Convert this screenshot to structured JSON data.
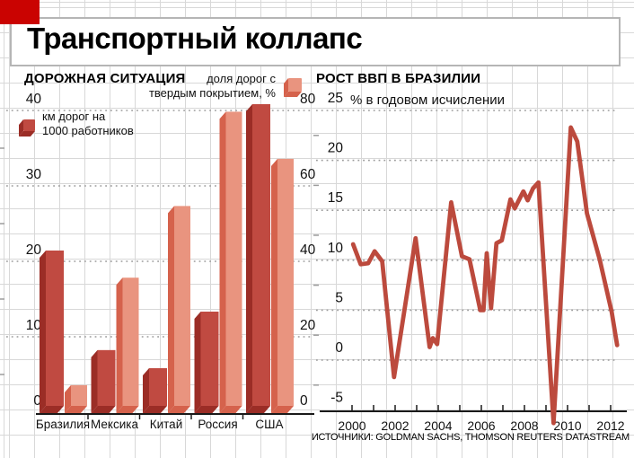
{
  "header": {
    "title": "Транспортный коллапс"
  },
  "source": "ИСТОЧНИКИ: GOLDMAN SACHS, THOMSON REUTERS DATASTREAM",
  "colors": {
    "corner_mark": "#ca0301",
    "bar_dark": "#c04a41",
    "bar_dark_side": "#9b2d26",
    "bar_light": "#e9947f",
    "bar_light_side": "#d5624c",
    "line": "#bc4a3d",
    "axis": "#1a1a1a",
    "grid_dashed": "#9c9c9c"
  },
  "chart_data": [
    {
      "type": "bar",
      "title": "ДОРОЖНАЯ СИТУАЦИЯ",
      "categories": [
        "Бразилия",
        "Мексика",
        "Китай",
        "Россия",
        "США"
      ],
      "series": [
        {
          "name": "км дорог на 1000 работников",
          "legend_lines": [
            "км дорог на",
            "1000 работников"
          ],
          "axis": "left",
          "values": [
            20.6,
            7.4,
            5,
            12.5,
            40
          ]
        },
        {
          "name": "доля дорог с твердым покрытием, %",
          "legend_lines": [
            "доля дорог с",
            "твердым покрытием, %"
          ],
          "axis": "right",
          "values": [
            5.5,
            34,
            53,
            78,
            65.5
          ]
        }
      ],
      "left_axis": {
        "ticks": [
          0,
          10,
          20,
          30,
          40
        ],
        "max": 40
      },
      "right_axis": {
        "ticks": [
          0,
          20,
          40,
          60,
          80
        ],
        "max": 80
      },
      "grid": "dashed horizontal",
      "legend_position": "top"
    },
    {
      "type": "line",
      "title": "РОСТ ВВП В БРАЗИЛИИ",
      "subtitle": "% в годовом исчислении",
      "xlabel": "",
      "ylabel": "",
      "x_ticks": [
        2000,
        2002,
        2004,
        2006,
        2008,
        2010,
        2012
      ],
      "y_ticks": [
        25,
        20,
        15,
        10,
        5,
        0,
        -5
      ],
      "ylim": [
        -7,
        25
      ],
      "xlim": [
        1999.8,
        2012.5
      ],
      "grid": "dashed horizontal",
      "points": [
        [
          2000.05,
          11.6
        ],
        [
          2000.4,
          9.6
        ],
        [
          2000.75,
          9.7
        ],
        [
          2001.05,
          10.9
        ],
        [
          2001.4,
          9.9
        ],
        [
          2001.95,
          -1.7
        ],
        [
          2002.95,
          12.2
        ],
        [
          2003.6,
          1.3
        ],
        [
          2003.75,
          2.2
        ],
        [
          2003.95,
          1.6
        ],
        [
          2004.6,
          15.8
        ],
        [
          2005.1,
          10.4
        ],
        [
          2005.45,
          10.1
        ],
        [
          2005.95,
          5.0
        ],
        [
          2006.1,
          5.0
        ],
        [
          2006.25,
          10.7
        ],
        [
          2006.45,
          5.2
        ],
        [
          2006.7,
          11.7
        ],
        [
          2006.95,
          12.0
        ],
        [
          2007.35,
          16.1
        ],
        [
          2007.55,
          15.2
        ],
        [
          2007.95,
          16.9
        ],
        [
          2008.15,
          16.0
        ],
        [
          2008.4,
          17.2
        ],
        [
          2008.65,
          17.8
        ],
        [
          2009.35,
          -6.3
        ],
        [
          2010.15,
          23.3
        ],
        [
          2010.45,
          21.9
        ],
        [
          2010.9,
          14.7
        ],
        [
          2011.5,
          10.0
        ],
        [
          2012.05,
          4.8
        ],
        [
          2012.3,
          1.5
        ]
      ]
    }
  ]
}
